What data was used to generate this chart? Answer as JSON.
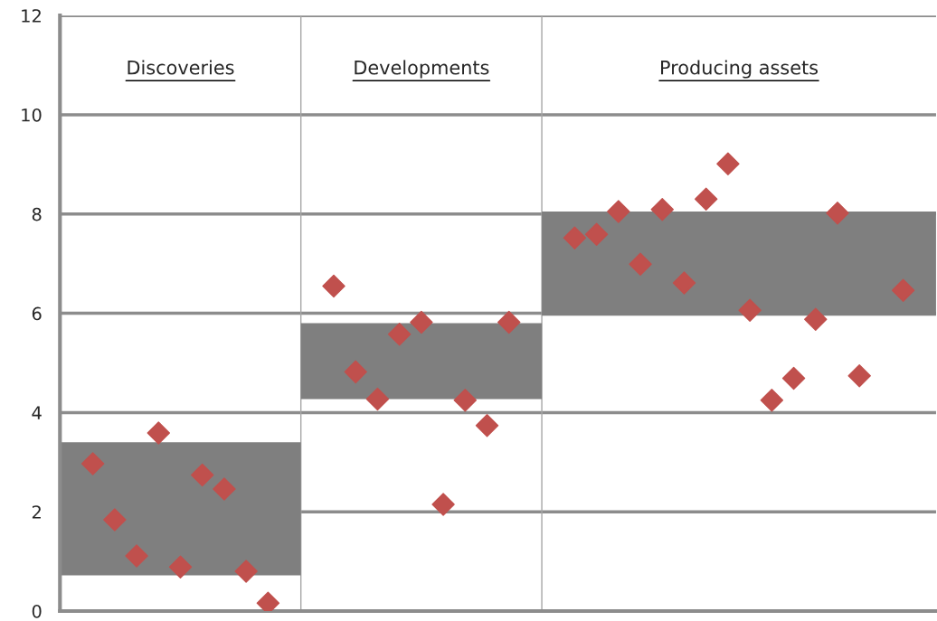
{
  "chart_data": {
    "type": "scatter",
    "categories": [
      null,
      null,
      null,
      null,
      null,
      null,
      null,
      null,
      null,
      null,
      null,
      null,
      null,
      null,
      null,
      null,
      null,
      null,
      null,
      null,
      null,
      null,
      null,
      null,
      null,
      null,
      null,
      null,
      null,
      null,
      null,
      null,
      null,
      null,
      null,
      null,
      null,
      null,
      null,
      null
    ],
    "series": [
      {
        "color": "#c0504d",
        "values": [
          null,
          2.97,
          1.84,
          1.11,
          3.59,
          0.89,
          2.74,
          2.46,
          0.8,
          0.16,
          null,
          null,
          6.55,
          4.82,
          4.27,
          5.58,
          5.82,
          2.15,
          4.25,
          3.74,
          5.82,
          null,
          null,
          7.52,
          7.59,
          8.05,
          6.99,
          8.09,
          6.61,
          8.3,
          9.01,
          6.06,
          4.25,
          4.69,
          5.88,
          8.02,
          4.74,
          null,
          6.46,
          null
        ]
      }
    ],
    "bands": [
      {
        "axis": "y",
        "from": 0.72,
        "to": 3.4,
        "color": "#7f7f7f"
      },
      {
        "axis": "y",
        "from": 4.27,
        "to": 5.8,
        "color": "#7f7f7f"
      },
      {
        "axis": "y",
        "from": 5.95,
        "to": 8.05,
        "color": "#7f7f7f"
      }
    ],
    "annotations": [
      "Discoveries",
      "Developments",
      "Producing assets"
    ],
    "ylim": [
      0,
      12
    ],
    "yticks": [
      0,
      2,
      4,
      6,
      8,
      10,
      12
    ],
    "grid": "y",
    "marker": "diamond",
    "tick_labels": "y"
  }
}
